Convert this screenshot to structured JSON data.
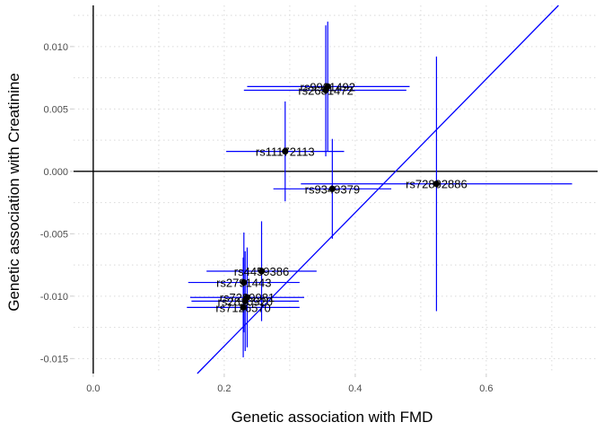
{
  "chart_data": {
    "type": "scatter",
    "xlabel": "Genetic association with FMD",
    "ylabel": "Genetic association with Creatinine",
    "xlim": [
      -0.03,
      0.77
    ],
    "ylim": [
      -0.0162,
      0.0133
    ],
    "xticks": [
      0.0,
      0.2,
      0.4,
      0.6
    ],
    "xtick_labels": [
      "0.0",
      "0.2",
      "0.4",
      "0.6"
    ],
    "yticks": [
      -0.015,
      -0.01,
      -0.005,
      0.0,
      0.005,
      0.01
    ],
    "ytick_labels": [
      "-0.015",
      "-0.010",
      "-0.005",
      "0.000",
      "0.005",
      "0.010"
    ],
    "grid": true,
    "reference_lines": {
      "x": 0,
      "y": 0
    },
    "fit_line": {
      "slope": 0.0535,
      "intercept": -0.0247,
      "color": "#0000ff"
    },
    "errorbar_color": "#0000ff",
    "point_color": "#000000",
    "points": [
      {
        "label": "rs9901492",
        "x": 0.358,
        "y": 0.0068,
        "x_low": 0.235,
        "x_high": 0.483,
        "y_low": 0.0016,
        "y_high": 0.012
      },
      {
        "label": "rs2681472",
        "x": 0.355,
        "y": 0.0065,
        "x_low": 0.23,
        "x_high": 0.478,
        "y_low": 0.0012,
        "y_high": 0.0117
      },
      {
        "label": "rs11172113",
        "x": 0.293,
        "y": 0.0016,
        "x_low": 0.203,
        "x_high": 0.383,
        "y_low": -0.0024,
        "y_high": 0.0056
      },
      {
        "label": "rs72802886",
        "x": 0.524,
        "y": -0.001,
        "x_low": 0.317,
        "x_high": 0.731,
        "y_low": -0.0112,
        "y_high": 0.0092
      },
      {
        "label": "rs9349379",
        "x": 0.365,
        "y": -0.0014,
        "x_low": 0.275,
        "x_high": 0.455,
        "y_low": -0.0054,
        "y_high": 0.0026
      },
      {
        "label": "rs4459386",
        "x": 0.257,
        "y": -0.008,
        "x_low": 0.173,
        "x_high": 0.341,
        "y_low": -0.012,
        "y_high": -0.004
      },
      {
        "label": "rs2791443",
        "x": 0.23,
        "y": -0.0089,
        "x_low": 0.145,
        "x_high": 0.315,
        "y_low": -0.0129,
        "y_high": -0.0049
      },
      {
        "label": "rs7299981",
        "x": 0.235,
        "y": -0.0101,
        "x_low": 0.148,
        "x_high": 0.322,
        "y_low": -0.0141,
        "y_high": -0.0061
      },
      {
        "label": "rs2810920",
        "x": 0.232,
        "y": -0.0104,
        "x_low": 0.15,
        "x_high": 0.314,
        "y_low": -0.0144,
        "y_high": -0.0064
      },
      {
        "label": "rs7126570",
        "x": 0.229,
        "y": -0.0109,
        "x_low": 0.143,
        "x_high": 0.315,
        "y_low": -0.0149,
        "y_high": -0.0069
      }
    ]
  }
}
